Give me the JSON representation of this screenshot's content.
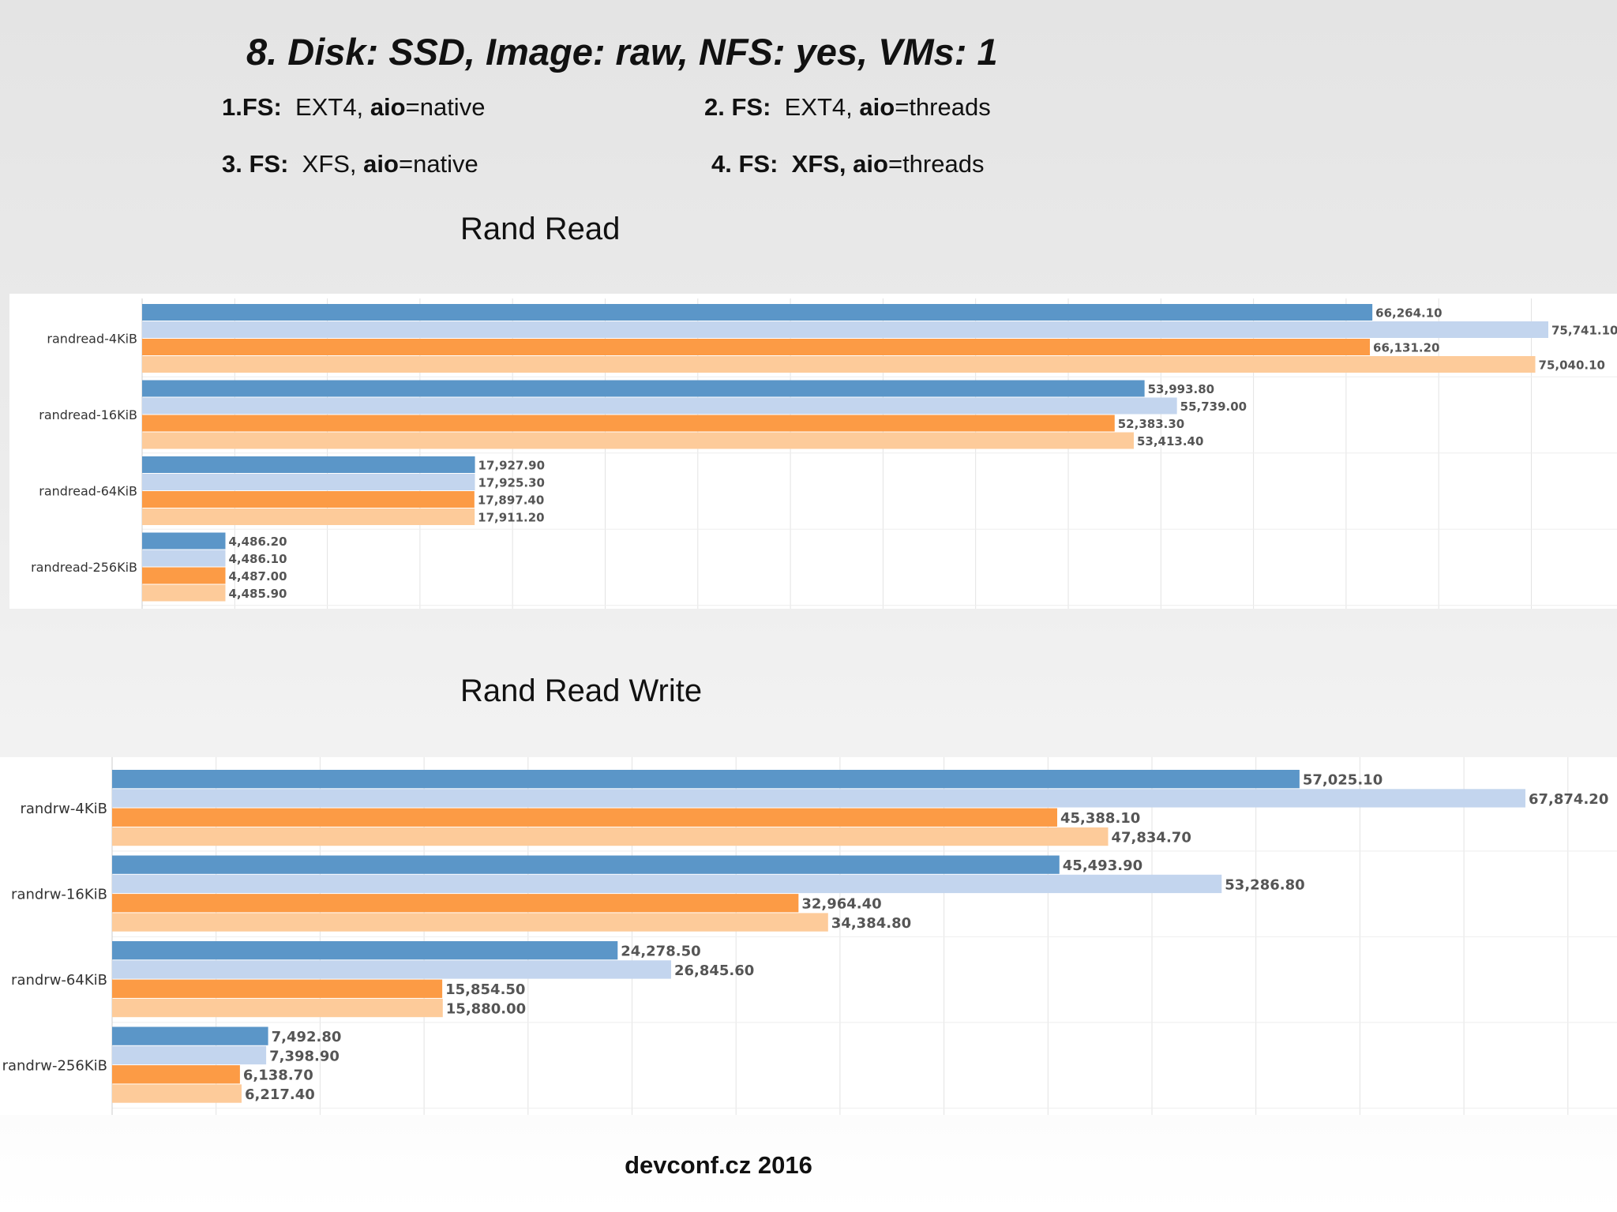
{
  "heading": {
    "title": "8. Disk: SSD, Image: raw, NFS: yes, VMs: 1",
    "fs1": {
      "num": "1.FS:",
      "fs": "EXT4,",
      "aio": "aio",
      "mode": "=native"
    },
    "fs2": {
      "num": "2. FS:",
      "fs": "EXT4,",
      "aio": "aio",
      "mode": "=threads"
    },
    "fs3": {
      "num": "3. FS:",
      "fs": "XFS,",
      "aio": "aio",
      "mode": "=native"
    },
    "fs4": {
      "num": "4. FS:",
      "fs": "XFS,",
      "aio": "aio",
      "mode": "=threads"
    }
  },
  "footer": "devconf.cz 2016",
  "colors": [
    "#5b96c8",
    "#c3d5ee",
    "#fc9b45",
    "#fdcb9a"
  ],
  "chart_data": [
    {
      "type": "bar",
      "orientation": "horizontal",
      "title": "Rand Read",
      "categories": [
        "randread-4KiB",
        "randread-16KiB",
        "randread-64KiB",
        "randread-256KiB"
      ],
      "series": [
        {
          "values": [
            66264.1,
            53993.8,
            17927.9,
            4486.2
          ]
        },
        {
          "values": [
            75741.1,
            55739.0,
            17925.3,
            4486.1
          ]
        },
        {
          "values": [
            66131.2,
            52383.3,
            17897.4,
            4487.0
          ]
        },
        {
          "values": [
            75040.1,
            53413.4,
            17911.2,
            4485.9
          ]
        }
      ],
      "labels": [
        [
          "66,264.10",
          "53,993.80",
          "17,927.90",
          "4,486.20"
        ],
        [
          "75,741.10",
          "55,739.00",
          "17,925.30",
          "4,486.10"
        ],
        [
          "66,131.20",
          "52,383.30",
          "17,897.40",
          "4,487.00"
        ],
        [
          "75,040.10",
          "53,413.40",
          "17,911.20",
          "4,485.90"
        ]
      ],
      "xlim": [
        0,
        80000
      ],
      "grid": true
    },
    {
      "type": "bar",
      "orientation": "horizontal",
      "title": "Rand Read Write",
      "categories": [
        "randrw-4KiB",
        "randrw-16KiB",
        "randrw-64KiB",
        "randrw-256KiB"
      ],
      "series": [
        {
          "values": [
            57025.1,
            45493.9,
            24278.5,
            7492.8
          ]
        },
        {
          "values": [
            67874.2,
            53286.8,
            26845.6,
            7398.9
          ]
        },
        {
          "values": [
            45388.1,
            32964.4,
            15854.5,
            6138.7
          ]
        },
        {
          "values": [
            47834.7,
            34384.8,
            15880.0,
            6217.4
          ]
        }
      ],
      "labels": [
        [
          "57,025.10",
          "45,493.90",
          "24,278.50",
          "7,492.80"
        ],
        [
          "67,874.20",
          "53,286.80",
          "26,845.60",
          "7,398.90"
        ],
        [
          "45,388.10",
          "32,964.40",
          "15,854.50",
          "6,138.70"
        ],
        [
          "47,834.70",
          "34,384.80",
          "15,880.00",
          "6,217.40"
        ]
      ],
      "xlim": [
        0,
        70000
      ],
      "grid": true
    }
  ]
}
